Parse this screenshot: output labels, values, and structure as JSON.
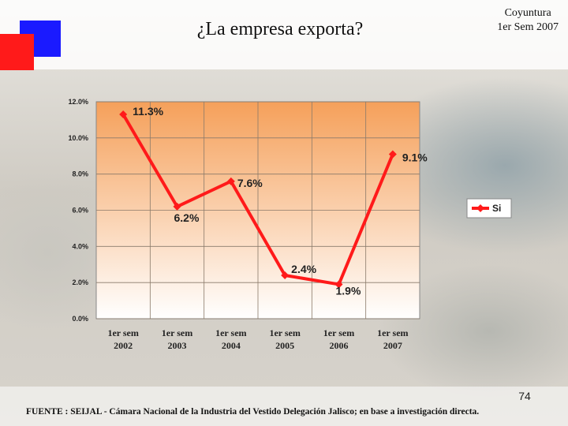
{
  "slide": {
    "title": "¿La empresa exporta?",
    "corner_line1": "Coyuntura",
    "corner_line2": "1er Sem 2007",
    "page_number": "74",
    "source": "FUENTE :  SEIJAL - Cámara Nacional de la Industria del Vestido Delegación Jalisco;  en base a investigación directa."
  },
  "colors": {
    "series": "#ff1a1a",
    "plot_top": "#f5a05a",
    "plot_bottom": "#ffffff",
    "logo_blue": "#1a1aff",
    "logo_red": "#ff1a1a"
  },
  "chart_data": {
    "type": "line",
    "title": "",
    "xlabel": "",
    "ylabel": "",
    "categories": [
      [
        "1er sem",
        "2002"
      ],
      [
        "1er sem",
        "2003"
      ],
      [
        "1er sem",
        "2004"
      ],
      [
        "1er sem",
        "2005"
      ],
      [
        "1er sem",
        "2006"
      ],
      [
        "1er sem",
        "2007"
      ]
    ],
    "series": [
      {
        "name": "Si",
        "values": [
          11.3,
          6.2,
          7.6,
          2.4,
          1.9,
          9.1
        ],
        "labels": [
          "11.3%",
          "6.2%",
          "7.6%",
          "2.4%",
          "1.9%",
          "9.1%"
        ]
      }
    ],
    "ylim": [
      0,
      12
    ],
    "yticks": [
      0,
      2,
      4,
      6,
      8,
      10,
      12
    ],
    "ytick_labels": [
      "0.0%",
      "2.0%",
      "4.0%",
      "6.0%",
      "8.0%",
      "10.0%",
      "12.0%"
    ],
    "grid": true,
    "legend": "right"
  }
}
